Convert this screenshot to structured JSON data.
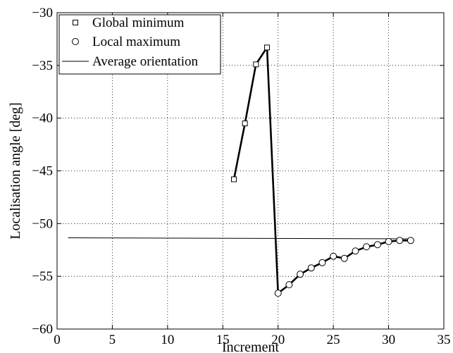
{
  "chart_data": {
    "type": "line",
    "xlabel": "Increment",
    "ylabel": "Localisation angle [deg]",
    "xlim": [
      0,
      35
    ],
    "ylim": [
      -60,
      -30
    ],
    "xticks": [
      0,
      5,
      10,
      15,
      20,
      25,
      30,
      35
    ],
    "yticks": [
      -60,
      -55,
      -50,
      -45,
      -40,
      -35,
      -30
    ],
    "grid": true,
    "legend_position": "top-left",
    "legend": [
      {
        "label": "Global minimum",
        "marker": "square"
      },
      {
        "label": "Local maximum",
        "marker": "circle"
      },
      {
        "label": "Average orientation",
        "marker": "line"
      }
    ],
    "path": {
      "x": [
        16,
        17,
        18,
        19,
        20,
        21,
        22,
        23,
        24,
        25,
        26,
        27,
        28,
        29,
        30,
        31,
        32
      ],
      "y": [
        -45.8,
        -40.5,
        -34.9,
        -33.3,
        -56.6,
        -55.8,
        -54.8,
        -54.2,
        -53.7,
        -53.1,
        -53.3,
        -52.6,
        -52.2,
        -52.0,
        -51.7,
        -51.6,
        -51.6
      ]
    },
    "series": [
      {
        "name": "Global minimum",
        "marker": "square",
        "x": [
          16,
          17,
          18,
          19
        ],
        "y": [
          -45.8,
          -40.5,
          -34.9,
          -33.3
        ]
      },
      {
        "name": "Local maximum",
        "marker": "circle",
        "x": [
          20,
          21,
          22,
          23,
          24,
          25,
          26,
          27,
          28,
          29,
          30,
          31,
          32
        ],
        "y": [
          -56.6,
          -55.8,
          -54.8,
          -54.2,
          -53.7,
          -53.1,
          -53.3,
          -52.6,
          -52.2,
          -52.0,
          -51.7,
          -51.6,
          -51.6
        ]
      },
      {
        "name": "Average orientation",
        "marker": "none",
        "x": [
          1,
          32
        ],
        "y": [
          -51.35,
          -51.45
        ]
      }
    ],
    "colors": {
      "line": "#000000",
      "grid": "#000000",
      "background": "#ffffff"
    }
  }
}
